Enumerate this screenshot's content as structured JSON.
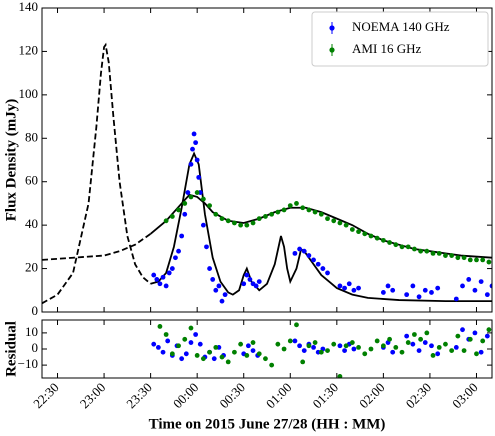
{
  "chart_data": [
    {
      "type": "scatter",
      "ylabel": "Flux Density (mJy)",
      "xlim": [
        20,
        310
      ],
      "ylim": [
        0,
        140
      ],
      "yticks": [
        0,
        20,
        40,
        60,
        80,
        100,
        120,
        140
      ],
      "legend": "upper right",
      "curves": [
        {
          "color": "#000000",
          "style": "dashed",
          "x": [
            20,
            30,
            40,
            50,
            55,
            58,
            60,
            61,
            63,
            66,
            70,
            75,
            80,
            85,
            90
          ],
          "values": [
            4,
            8,
            18,
            50,
            85,
            110,
            122,
            123,
            115,
            90,
            60,
            35,
            22,
            16,
            13
          ]
        },
        {
          "color": "#000000",
          "style": "solid",
          "x": [
            90,
            95,
            100,
            105,
            110,
            115,
            118,
            121,
            125,
            130,
            135,
            140,
            143,
            147,
            150,
            152,
            155,
            160,
            165,
            170,
            174,
            176,
            178,
            180,
            184,
            187,
            190,
            195,
            200,
            205,
            210,
            220,
            230,
            250,
            280,
            310
          ],
          "values": [
            13,
            14,
            18,
            30,
            48,
            68,
            73,
            68,
            45,
            25,
            14,
            9,
            8,
            10,
            17,
            20,
            14,
            10,
            13,
            22,
            35,
            30,
            20,
            14,
            20,
            29,
            27,
            22,
            17,
            14,
            11,
            8,
            6.5,
            5.5,
            5,
            5
          ]
        },
        {
          "color": "#000000",
          "style": "dashed",
          "x": [
            20,
            40,
            60,
            70,
            80,
            90
          ],
          "values": [
            24,
            25,
            26,
            28,
            31,
            36
          ]
        },
        {
          "color": "#000000",
          "style": "solid",
          "x": [
            90,
            100,
            110,
            115,
            120,
            125,
            130,
            140,
            150,
            160,
            170,
            180,
            190,
            200,
            210,
            220,
            230,
            240,
            250,
            260,
            270,
            280,
            290,
            310
          ],
          "values": [
            36,
            42,
            50,
            54,
            53,
            50,
            46,
            42,
            41,
            43,
            46,
            48,
            48,
            46,
            43,
            40,
            36,
            33,
            31,
            29,
            28,
            27,
            26,
            25
          ]
        }
      ],
      "series": [
        {
          "name": "NOEMA 140 GHz",
          "color": "#0000ff",
          "x": [
            92,
            94,
            96,
            98,
            100,
            102,
            104,
            106,
            108,
            110,
            112,
            114,
            116,
            117,
            118,
            119,
            120,
            121,
            122,
            124,
            126,
            128,
            130,
            132,
            134,
            136,
            138,
            150,
            152,
            154,
            156,
            158,
            160,
            183,
            186,
            189,
            192,
            195,
            198,
            201,
            204,
            212,
            215,
            218,
            221,
            224,
            240,
            243,
            246,
            255,
            259,
            263,
            267,
            271,
            275,
            287,
            291,
            295,
            299,
            303,
            307,
            310
          ],
          "values": [
            17,
            15,
            13,
            16,
            12,
            18,
            20,
            25,
            28,
            35,
            45,
            55,
            68,
            75,
            82,
            78,
            70,
            62,
            55,
            40,
            30,
            20,
            15,
            10,
            12,
            5,
            8,
            13,
            17,
            15,
            13,
            12,
            14,
            27,
            29,
            28,
            26,
            24,
            22,
            20,
            18,
            12,
            11,
            13,
            10,
            11,
            9,
            12,
            10,
            8,
            12,
            7,
            10,
            9,
            11,
            6,
            12,
            15,
            10,
            14,
            8,
            12
          ]
        },
        {
          "name": "AMI 16 GHz",
          "color": "#008000",
          "x": [
            100,
            104,
            108,
            112,
            116,
            120,
            124,
            128,
            132,
            136,
            140,
            144,
            148,
            152,
            156,
            160,
            164,
            168,
            172,
            176,
            180,
            184,
            188,
            192,
            196,
            200,
            204,
            208,
            212,
            216,
            220,
            224,
            228,
            232,
            236,
            240,
            244,
            248,
            252,
            256,
            260,
            264,
            268,
            272,
            276,
            280,
            284,
            288,
            292,
            296,
            300,
            304,
            308
          ],
          "values": [
            42,
            44,
            47,
            50,
            53,
            55,
            52,
            49,
            45,
            43,
            42,
            41,
            40,
            40,
            41,
            43,
            44,
            45,
            46,
            47,
            49,
            50,
            48,
            47,
            46,
            45,
            43,
            42,
            41,
            40,
            38,
            37,
            36,
            35,
            34,
            33,
            32,
            31,
            30,
            30,
            29,
            28,
            28,
            27,
            27,
            26,
            26,
            25,
            25,
            24,
            24,
            24,
            23
          ]
        }
      ]
    },
    {
      "type": "scatter",
      "ylabel": "Residual",
      "xlabel": "Time on 2015 June 27/28 (HH : MM)",
      "xlim": [
        20,
        310
      ],
      "ylim": [
        -18,
        18
      ],
      "yticks": [
        {
          "value": -10,
          "label": "−10"
        },
        0,
        10
      ],
      "xticks": [
        {
          "value": 30,
          "label": "22:30"
        },
        {
          "value": 60,
          "label": "23:00"
        },
        {
          "value": 90,
          "label": "23:30"
        },
        {
          "value": 120,
          "label": "00:00"
        },
        {
          "value": 150,
          "label": "00:30"
        },
        {
          "value": 180,
          "label": "01:00"
        },
        {
          "value": 210,
          "label": "01:30"
        },
        {
          "value": 240,
          "label": "02:00"
        },
        {
          "value": 270,
          "label": "02:30"
        },
        {
          "value": 300,
          "label": "03:00"
        }
      ],
      "series": [
        {
          "color": "#0000ff",
          "x": [
            92,
            95,
            98,
            101,
            104,
            107,
            110,
            113,
            116,
            119,
            122,
            125,
            128,
            131,
            134,
            137,
            150,
            153,
            156,
            159,
            183,
            186,
            189,
            192,
            195,
            198,
            201,
            212,
            215,
            218,
            221,
            240,
            243,
            246,
            255,
            259,
            263,
            267,
            271,
            275,
            287,
            291,
            295,
            299,
            303,
            307
          ],
          "values": [
            3,
            1,
            -2,
            5,
            -4,
            2,
            -6,
            -3,
            4,
            9,
            3,
            -5,
            -2,
            -6,
            1,
            -4,
            -3,
            2,
            -1,
            -4,
            5,
            2,
            -1,
            3,
            1,
            -2,
            0,
            2,
            -1,
            3,
            0,
            1,
            4,
            -2,
            8,
            3,
            -1,
            4,
            2,
            -3,
            1,
            12,
            6,
            10,
            -2,
            8
          ]
        },
        {
          "color": "#008000",
          "x": [
            96,
            100,
            104,
            108,
            112,
            116,
            120,
            124,
            128,
            132,
            136,
            140,
            144,
            148,
            152,
            156,
            160,
            164,
            168,
            172,
            176,
            180,
            184,
            188,
            192,
            196,
            200,
            204,
            208,
            212,
            216,
            220,
            224,
            228,
            232,
            236,
            240,
            244,
            248,
            252,
            256,
            260,
            264,
            268,
            272,
            276,
            280,
            284,
            288,
            292,
            296,
            300,
            304,
            308
          ],
          "values": [
            14,
            9,
            -3,
            2,
            6,
            13,
            -4,
            -6,
            -2,
            1,
            -5,
            -8,
            -2,
            3,
            -4,
            4,
            -3,
            -6,
            -10,
            3,
            0,
            5,
            15,
            -8,
            2,
            4,
            -2,
            -1,
            3,
            -17,
            2,
            4,
            1,
            -3,
            0,
            5,
            2,
            6,
            1,
            -2,
            4,
            9,
            6,
            10,
            -4,
            1,
            3,
            -1,
            8,
            -1,
            6,
            -3,
            5,
            12
          ]
        }
      ]
    }
  ]
}
